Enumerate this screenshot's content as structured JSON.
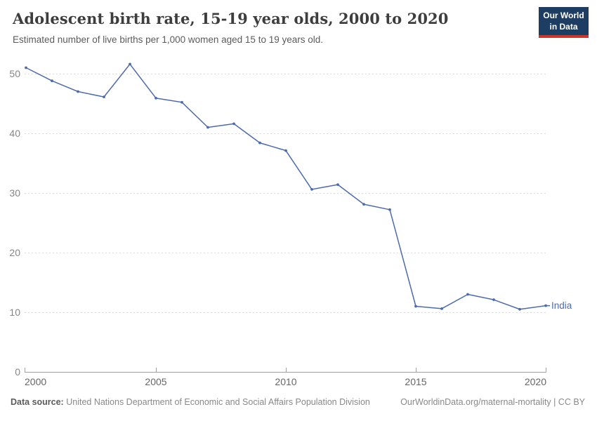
{
  "header": {
    "title": "Adolescent birth rate, 15-19 year olds, 2000 to 2020",
    "subtitle": "Estimated number of live births per 1,000 women aged 15 to 19 years old."
  },
  "logo": {
    "line1": "Our World",
    "line2": "in Data",
    "bg_color": "#1D3D63",
    "accent_color": "#D0352C"
  },
  "chart_data": {
    "type": "line",
    "title": "Adolescent birth rate, 15-19 year olds, 2000 to 2020",
    "xlabel": "",
    "ylabel": "",
    "x": [
      2000,
      2001,
      2002,
      2003,
      2004,
      2005,
      2006,
      2007,
      2008,
      2009,
      2010,
      2011,
      2012,
      2013,
      2014,
      2015,
      2016,
      2017,
      2018,
      2019,
      2020
    ],
    "series": [
      {
        "name": "India",
        "color": "#4C6BAE",
        "values": [
          51.0,
          48.8,
          47.0,
          46.1,
          51.6,
          45.9,
          45.2,
          41.0,
          41.6,
          38.4,
          37.1,
          30.6,
          31.4,
          28.1,
          27.2,
          11.0,
          10.6,
          13.0,
          12.1,
          10.5,
          11.1
        ]
      }
    ],
    "xticks": [
      2000,
      2005,
      2010,
      2015,
      2020
    ],
    "yticks": [
      0,
      10,
      20,
      30,
      40,
      50
    ],
    "ylim": [
      0,
      52
    ],
    "grid": "horizontal-dashed",
    "legend_position": "end-of-line",
    "colors": {
      "grid": "#DBDBDB",
      "axis": "#9E9E9E",
      "y_tick_text": "#858585",
      "x_tick_text": "#666666"
    }
  },
  "footer": {
    "datasource_label": "Data source:",
    "datasource_text": "United Nations Department of Economic and Social Affairs Population Division",
    "link": "OurWorldinData.org/maternal-mortality | CC BY"
  }
}
